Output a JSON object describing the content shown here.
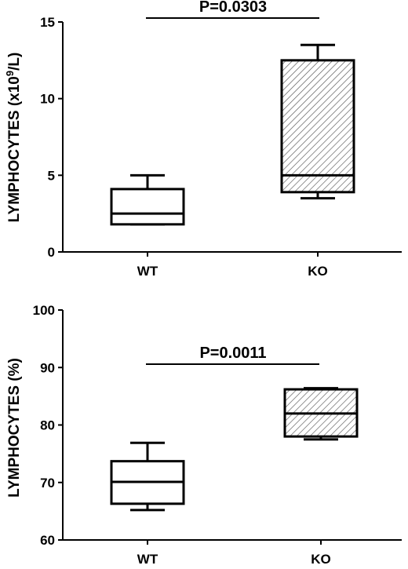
{
  "chart_data": [
    {
      "type": "box",
      "categories": [
        "WT",
        "KO"
      ],
      "ylabel": "LYMPHOCYTES (x10",
      "ylabel_sup": "9",
      "ylabel_end": "/L)",
      "ylim": [
        0,
        15
      ],
      "yticks": [
        0,
        5,
        10,
        15
      ],
      "boxes": [
        {
          "name": "WT",
          "min": 1.8,
          "q1": 1.8,
          "median": 2.5,
          "q3": 4.1,
          "max": 5.0,
          "pattern": "none"
        },
        {
          "name": "KO",
          "min": 3.5,
          "q1": 3.9,
          "median": 5.0,
          "q3": 12.5,
          "max": 13.5,
          "pattern": "hatch"
        }
      ],
      "annotation": "P=0.0303"
    },
    {
      "type": "box",
      "categories": [
        "WT",
        "KO"
      ],
      "ylabel": "LYMPHOCYTES (%)",
      "ylim": [
        60,
        100
      ],
      "yticks": [
        60,
        70,
        80,
        90,
        100
      ],
      "boxes": [
        {
          "name": "WT",
          "min": 65.2,
          "q1": 66.3,
          "median": 70.1,
          "q3": 73.7,
          "max": 76.9,
          "pattern": "none"
        },
        {
          "name": "KO",
          "min": 77.5,
          "q1": 78.0,
          "median": 82.0,
          "q3": 86.2,
          "max": 86.4,
          "pattern": "hatch"
        }
      ],
      "annotation": "P=0.0011"
    }
  ]
}
